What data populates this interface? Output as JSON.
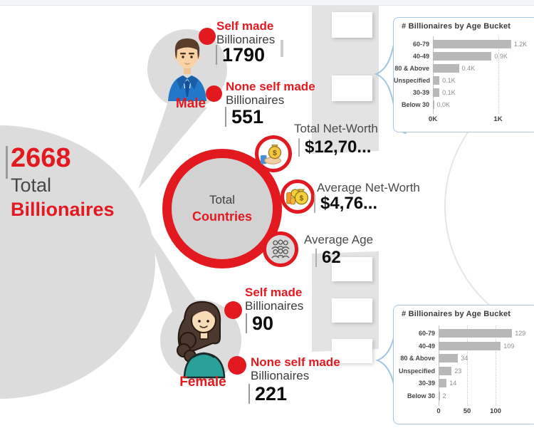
{
  "colors": {
    "accent_red": "#e2191f",
    "gray_blob": "#dcdcdc",
    "bar_gray": "#b8b8b8",
    "brace_blue": "#9fc5e8",
    "center_circle_fill": "#d2d2d2"
  },
  "total_panel": {
    "value": "2668",
    "label_line1": "Total",
    "label_line2": "Billionaires"
  },
  "center": {
    "line1": "Total",
    "line2": "Countries"
  },
  "male": {
    "label": "Male",
    "self_made": {
      "title": "Self made",
      "subtitle": "Billionaires",
      "value": "1790"
    },
    "non_self_made": {
      "title": "None self made",
      "subtitle": "Billionaires",
      "value": "551"
    }
  },
  "female": {
    "label": "Female",
    "self_made": {
      "title": "Self made",
      "subtitle": "Billionaires",
      "value": "90"
    },
    "non_self_made": {
      "title": "None self made",
      "subtitle": "Billionaires",
      "value": "221"
    }
  },
  "stats": [
    {
      "icon": "money-bag-hand-icon",
      "label": "Total Net-Worth",
      "value": "$12,70..."
    },
    {
      "icon": "money-bags-coins-icon",
      "label": "Average Net-Worth",
      "value": "$4,76..."
    },
    {
      "icon": "people-group-icon",
      "label": "Average Age",
      "value": "62"
    }
  ],
  "chart_data": [
    {
      "type": "bar",
      "orientation": "horizontal",
      "group": "Male",
      "title": "# Billionaires by Age Bucket",
      "categories": [
        "60-79",
        "40-49",
        "80 & Above",
        "Unspecified",
        "30-39",
        "Below 30"
      ],
      "values": [
        1200,
        900,
        400,
        100,
        100,
        0
      ],
      "value_labels": [
        "1.2K",
        "0.9K",
        "0.4K",
        "0.1K",
        "0.1K",
        "0.0K"
      ],
      "x_ticks": [
        "0K",
        "1K"
      ],
      "xlim": [
        0,
        1300
      ],
      "grid": "dotted-vertical",
      "legend": "none"
    },
    {
      "type": "bar",
      "orientation": "horizontal",
      "group": "Female",
      "title": "# Billionaires by Age Bucket",
      "categories": [
        "60-79",
        "40-49",
        "80 & Above",
        "Unspecified",
        "30-39",
        "Below 30"
      ],
      "values": [
        129,
        109,
        34,
        23,
        14,
        2
      ],
      "value_labels": [
        "129",
        "109",
        "34",
        "23",
        "14",
        "2"
      ],
      "x_ticks": [
        "0",
        "50",
        "100"
      ],
      "xlim": [
        0,
        135
      ],
      "grid": "dotted-vertical",
      "legend": "none"
    }
  ]
}
